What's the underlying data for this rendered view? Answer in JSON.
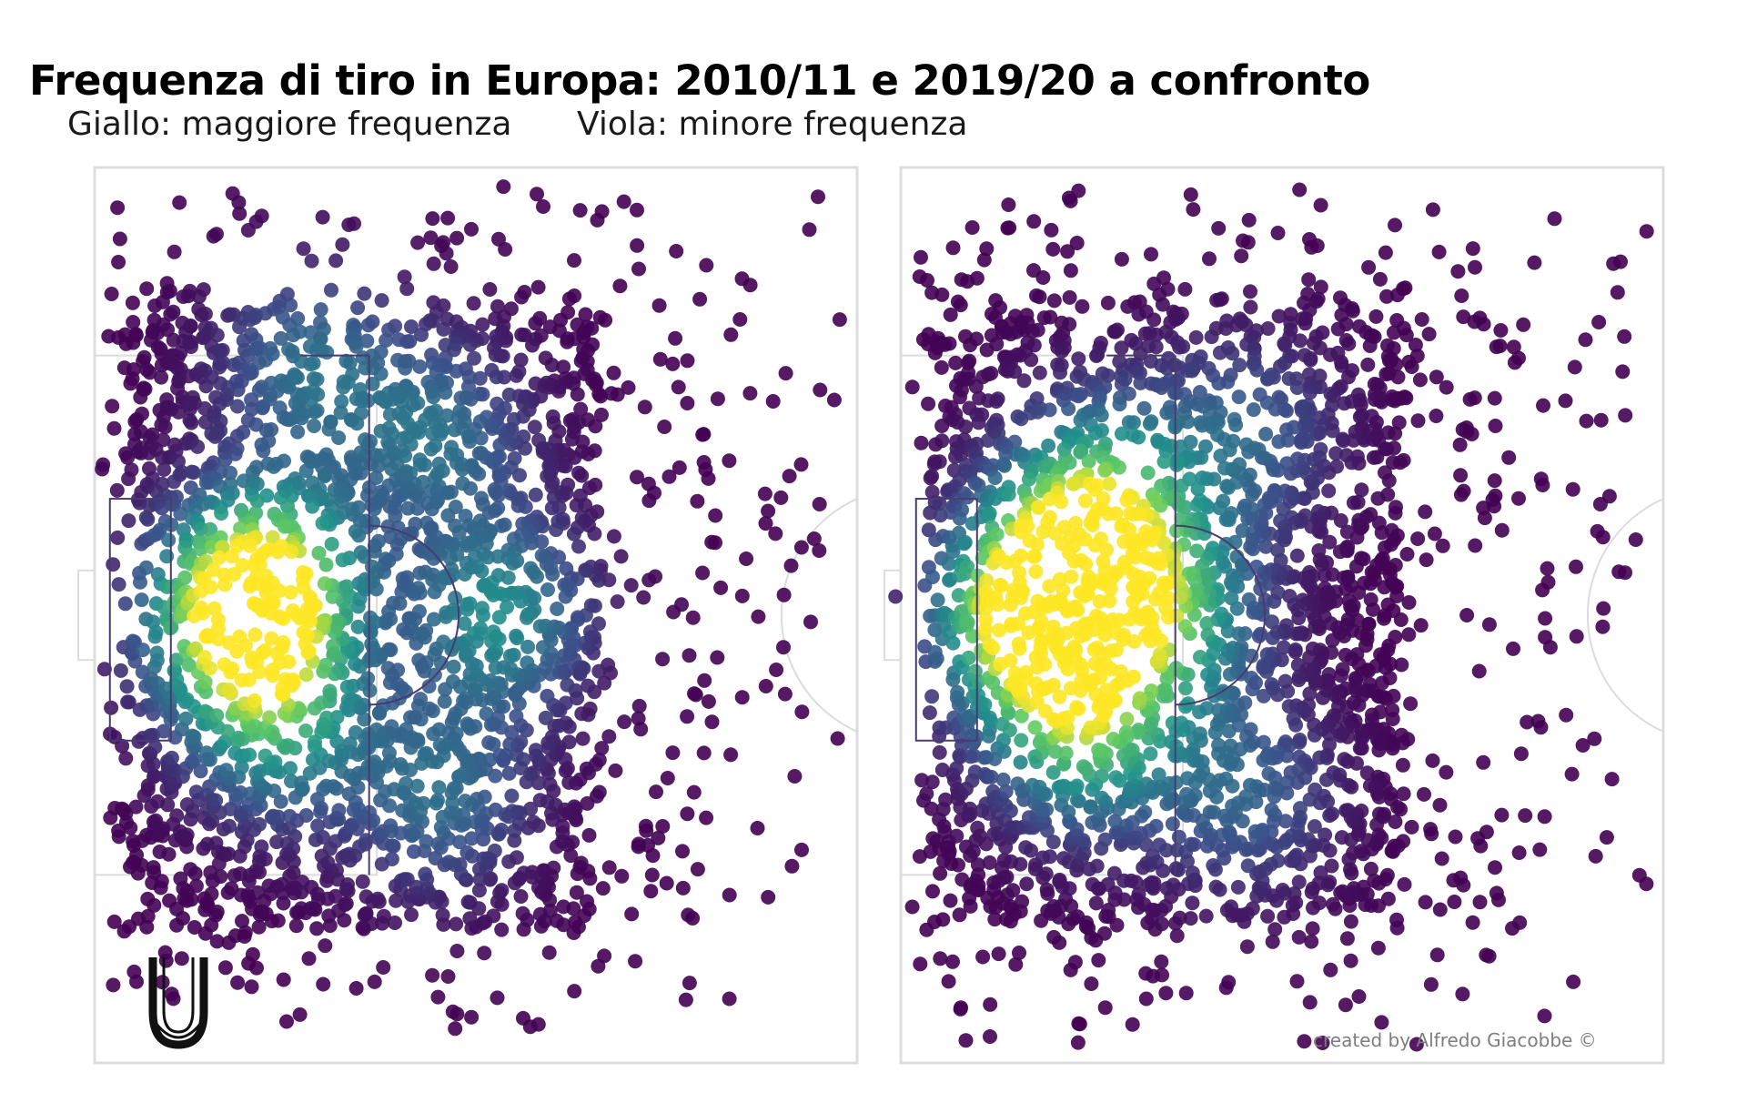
{
  "header": {
    "title": "Frequenza di tiro in Europa: 2010/11 e 2019/20 a confronto",
    "subtitle_yellow": "Giallo: maggiore frequenza",
    "subtitle_violet": "Viola: minore frequenza"
  },
  "credit": "created by Alfredo Giacobbe ©",
  "logo": {
    "icon": "u-logo-icon"
  },
  "colors": {
    "background": "#ffffff",
    "pitch_lines": "#dcdcdc",
    "inner_lines": "#4a3a72",
    "scale_low": "#440154",
    "scale_mid": "#21918c",
    "scale_high": "#fde725"
  },
  "chart_data": [
    {
      "type": "heatmap",
      "period": "2010/11",
      "pitch": "half-pitch, goal on the left",
      "hotspots": [
        {
          "x": 0.19,
          "y": 0.5,
          "intensity": 1.0
        },
        {
          "x": 0.24,
          "y": 0.45,
          "intensity": 0.55
        },
        {
          "x": 0.24,
          "y": 0.62,
          "intensity": 0.55
        },
        {
          "x": 0.28,
          "y": 0.22,
          "intensity": 0.4
        },
        {
          "x": 0.53,
          "y": 0.5,
          "intensity": 0.55
        },
        {
          "x": 0.45,
          "y": 0.3,
          "intensity": 0.4
        },
        {
          "x": 0.45,
          "y": 0.7,
          "intensity": 0.4
        }
      ]
    },
    {
      "type": "heatmap",
      "period": "2019/20",
      "pitch": "half-pitch, goal on the left",
      "hotspots": [
        {
          "x": 0.17,
          "y": 0.5,
          "intensity": 1.0
        },
        {
          "x": 0.24,
          "y": 0.46,
          "intensity": 0.75
        },
        {
          "x": 0.24,
          "y": 0.63,
          "intensity": 0.7
        },
        {
          "x": 0.26,
          "y": 0.36,
          "intensity": 0.6
        },
        {
          "x": 0.36,
          "y": 0.5,
          "intensity": 0.55
        },
        {
          "x": 0.45,
          "y": 0.3,
          "intensity": 0.35
        },
        {
          "x": 0.45,
          "y": 0.7,
          "intensity": 0.35
        }
      ]
    }
  ]
}
